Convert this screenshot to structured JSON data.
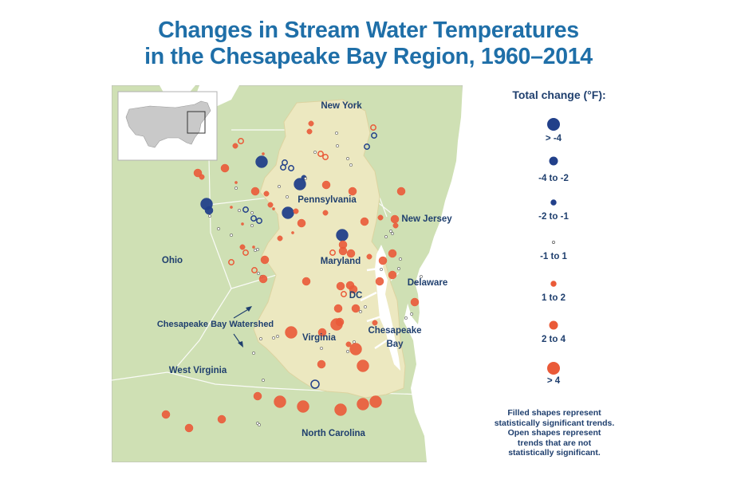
{
  "title": {
    "line1": "Changes in Stream Water Temperatures",
    "line2": "in the Chesapeake Bay Region, 1960–2014"
  },
  "map_labels": {
    "new_york": "New York",
    "pennsylvania": "Pennsylvania",
    "new_jersey": "New Jersey",
    "ohio": "Ohio",
    "maryland": "Maryland",
    "delaware": "Delaware",
    "dc": "DC",
    "watershed": "Chesapeake Bay Watershed",
    "virginia": "Virginia",
    "chesapeake_bay_line1": "Chesapeake",
    "chesapeake_bay_line2": "Bay",
    "west_virginia": "West Virginia",
    "north_carolina": "North Carolina"
  },
  "legend": {
    "title": "Total change (°F):",
    "items": [
      {
        "label": "> -4",
        "color": "#22408a",
        "size": 4
      },
      {
        "label": "-4 to -2",
        "color": "#22408a",
        "size": 3
      },
      {
        "label": "-2 to -1",
        "color": "#22408a",
        "size": 2
      },
      {
        "label": "-1 to 1",
        "color": "#ffffff",
        "size": 1
      },
      {
        "label": "1 to 2",
        "color": "#ea5a38",
        "size": 2
      },
      {
        "label": "2 to 4",
        "color": "#ea5a38",
        "size": 3
      },
      {
        "label": "> 4",
        "color": "#ea5a38",
        "size": 4
      }
    ],
    "note": [
      "Filled shapes represent",
      "statistically significant trends.",
      "Open shapes represent",
      "trends that are not",
      "statistically significant."
    ]
  },
  "colors": {
    "title": "#1f6fa8",
    "land": "#cfe0b4",
    "watershed": "#ece8c0",
    "water": "#ffffff",
    "warming": "#ea5a38",
    "cooling": "#22408a"
  }
}
